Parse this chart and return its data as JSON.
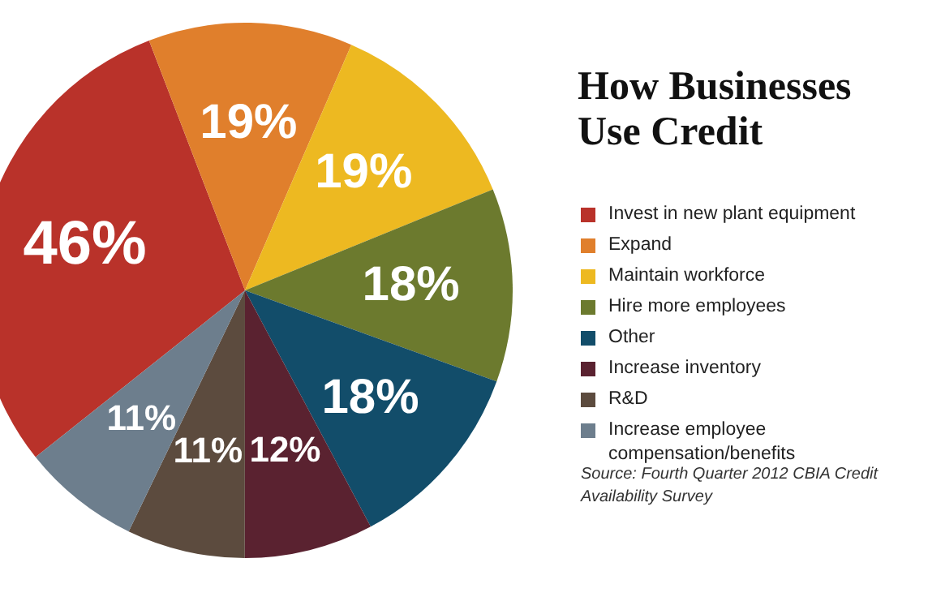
{
  "chart_data": {
    "type": "pie",
    "title": "How Businesses Use Credit",
    "categories": [
      "Invest in new plant equipment",
      "Expand",
      "Maintain workforce",
      "Hire more employees",
      "Other",
      "Increase inventory",
      "R&D",
      "Increase employee compensation/benefits"
    ],
    "values": [
      46,
      19,
      19,
      18,
      18,
      12,
      11,
      11
    ],
    "colors": [
      "#b9322a",
      "#e07f2c",
      "#edb921",
      "#6c7a2e",
      "#124d6a",
      "#5a2230",
      "#5c4b3e",
      "#6d7e8d"
    ],
    "value_labels": [
      "46%",
      "19%",
      "19%",
      "18%",
      "18%",
      "12%",
      "11%",
      "11%"
    ],
    "legend": "right",
    "annotations": [
      "Source: Fourth Quarter 2012 CBIA Credit Availability Survey"
    ]
  }
}
